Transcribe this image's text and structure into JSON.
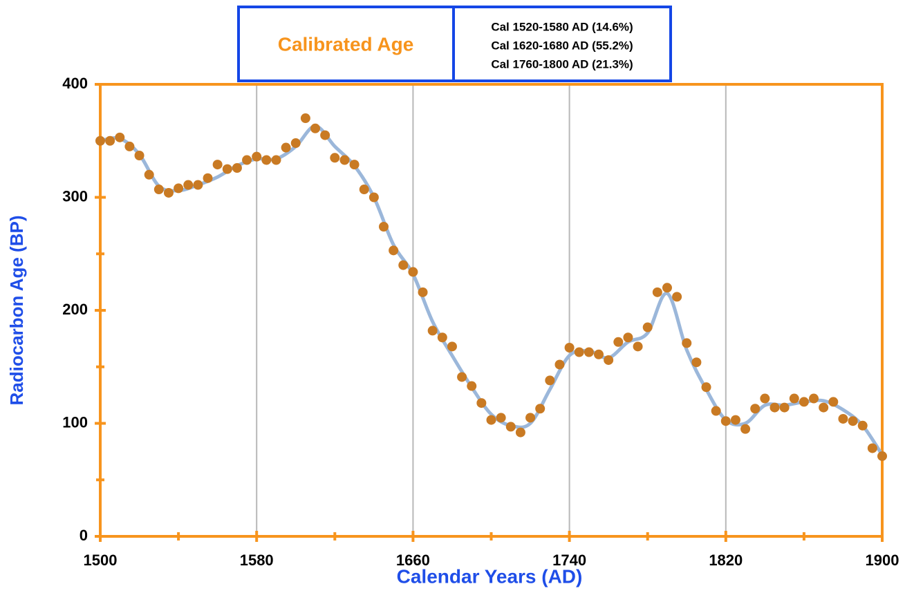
{
  "chart_data": {
    "type": "scatter",
    "annotation_title": "Calibrated Age",
    "annotations": [
      "Cal 1520-1580 AD (14.6%)",
      "Cal 1620-1680 AD (55.2%)",
      "Cal 1760-1800 AD (21.3%)"
    ],
    "x_label": "Calendar Years (AD)",
    "y_label": "Radiocarbon Age (BP)",
    "xlim": [
      1500,
      1900
    ],
    "ylim": [
      0,
      400
    ],
    "xticks": [
      1500,
      1580,
      1660,
      1740,
      1820,
      1900
    ],
    "xticks_minor": [
      1540,
      1620,
      1700,
      1780,
      1860
    ],
    "yticks": [
      0,
      100,
      200,
      300,
      400
    ],
    "yticks_minor": [
      50,
      150,
      250,
      350
    ],
    "grid": true,
    "frame_color": "#f7941d",
    "series": [
      {
        "color": "#c97a23",
        "x": [
          1500,
          1505,
          1510,
          1515,
          1520,
          1525,
          1530,
          1535,
          1540,
          1545,
          1550,
          1555,
          1560,
          1565,
          1570,
          1575,
          1580,
          1585,
          1590,
          1595,
          1600,
          1605,
          1610,
          1615,
          1620,
          1625,
          1630,
          1635,
          1640,
          1645,
          1650,
          1655,
          1660,
          1665,
          1670,
          1675,
          1680,
          1685,
          1690,
          1695,
          1700,
          1705,
          1710,
          1715,
          1720,
          1725,
          1730,
          1735,
          1740,
          1745,
          1750,
          1755,
          1760,
          1765,
          1770,
          1775,
          1780,
          1785,
          1790,
          1795,
          1800,
          1805,
          1810,
          1815,
          1820,
          1825,
          1830,
          1835,
          1840,
          1845,
          1850,
          1855,
          1860,
          1865,
          1870,
          1875,
          1880,
          1885,
          1890,
          1895,
          1900
        ],
        "values": [
          350,
          350,
          353,
          345,
          337,
          320,
          307,
          304,
          308,
          311,
          311,
          317,
          329,
          325,
          326,
          333,
          336,
          333,
          333,
          344,
          348,
          370,
          361,
          355,
          335,
          333,
          329,
          307,
          300,
          274,
          253,
          240,
          234,
          216,
          182,
          176,
          168,
          141,
          133,
          118,
          103,
          105,
          97,
          92,
          105,
          113,
          138,
          152,
          167,
          163,
          163,
          161,
          156,
          172,
          176,
          168,
          185,
          216,
          220,
          212,
          171,
          154,
          132,
          111,
          102,
          103,
          95,
          113,
          122,
          114,
          114,
          122,
          119,
          122,
          114,
          119,
          104,
          102,
          98,
          78,
          71
        ]
      },
      {
        "color": "#9bb7da",
        "x": [
          1500,
          1510,
          1520,
          1530,
          1540,
          1550,
          1560,
          1570,
          1580,
          1590,
          1600,
          1610,
          1620,
          1630,
          1640,
          1650,
          1660,
          1670,
          1680,
          1690,
          1700,
          1710,
          1720,
          1730,
          1740,
          1750,
          1760,
          1770,
          1780,
          1790,
          1800,
          1810,
          1820,
          1830,
          1840,
          1850,
          1860,
          1870,
          1880,
          1890,
          1900
        ],
        "values": [
          350,
          352,
          338,
          310,
          306,
          311,
          318,
          328,
          334,
          334,
          345,
          363,
          345,
          328,
          300,
          258,
          232,
          190,
          160,
          132,
          108,
          98,
          100,
          130,
          160,
          164,
          158,
          172,
          180,
          215,
          165,
          130,
          103,
          100,
          116,
          116,
          119,
          120,
          112,
          98,
          72
        ]
      }
    ]
  }
}
